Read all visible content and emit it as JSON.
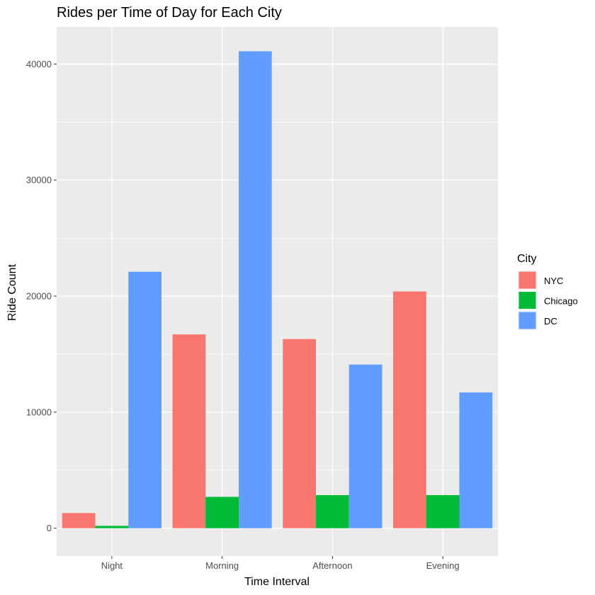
{
  "chart_data": {
    "type": "bar",
    "title": "Rides per Time of Day for Each City",
    "xlabel": "Time Interval",
    "ylabel": "Ride Count",
    "categories": [
      "Night",
      "Morning",
      "Afternoon",
      "Evening"
    ],
    "series": [
      {
        "name": "NYC",
        "color": "#F8766D",
        "values": [
          1300,
          16700,
          16300,
          20400
        ]
      },
      {
        "name": "Chicago",
        "color": "#00BA38",
        "values": [
          200,
          2700,
          2850,
          2850
        ]
      },
      {
        "name": "DC",
        "color": "#619CFF",
        "values": [
          22100,
          41100,
          14100,
          11700
        ]
      }
    ],
    "yticks": [
      0,
      10000,
      20000,
      30000,
      40000
    ],
    "ylim": [
      -2400,
      43200
    ],
    "grid": true,
    "panel_background": "#EBEBEB",
    "legend": {
      "title": "City",
      "position": "right"
    }
  }
}
